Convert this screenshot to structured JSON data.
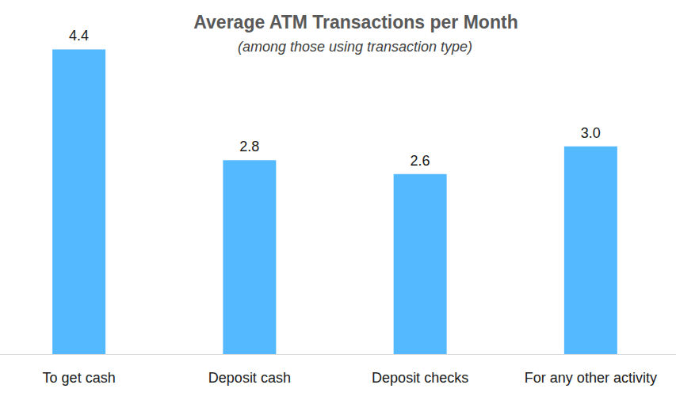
{
  "chart_data": {
    "type": "bar",
    "title": "Average ATM Transactions per Month",
    "subtitle": "(among those using transaction type)",
    "categories": [
      "To get cash",
      "Deposit cash",
      "Deposit checks",
      "For any other activity"
    ],
    "values": [
      4.4,
      2.8,
      2.6,
      3.0
    ],
    "value_labels": [
      "4.4",
      "2.8",
      "2.6",
      "3.0"
    ],
    "color": "#55b9ff",
    "ylim": [
      0,
      5
    ],
    "data_labels": true,
    "tick_labels": "x",
    "grid": false
  }
}
